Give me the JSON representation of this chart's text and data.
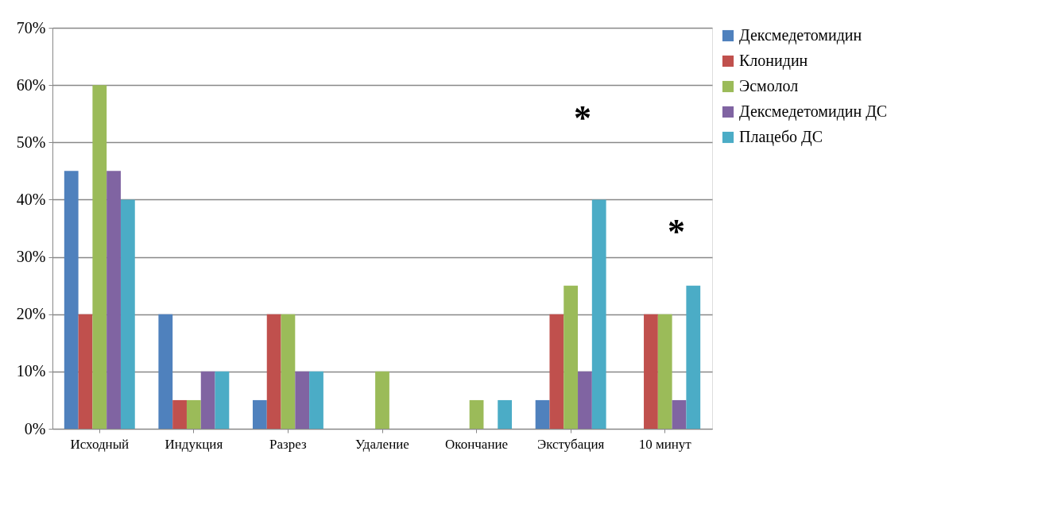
{
  "chart_data": {
    "type": "bar",
    "categories": [
      "Исходный",
      "Индукция",
      "Разрез",
      "Удаление",
      "Окончание",
      "Экстубация",
      "10 минут"
    ],
    "series": [
      {
        "name": "Дексмедетомидин",
        "color": "#4f81bd",
        "values": [
          45,
          20,
          5,
          0,
          0,
          5,
          0
        ]
      },
      {
        "name": "Клонидин",
        "color": "#c0504d",
        "values": [
          20,
          5,
          20,
          0,
          0,
          20,
          20
        ]
      },
      {
        "name": "Эсмолол",
        "color": "#9bbb59",
        "values": [
          60,
          5,
          20,
          10,
          5,
          25,
          20
        ]
      },
      {
        "name": "Дексмедетомидин ДС",
        "color": "#8064a2",
        "values": [
          45,
          10,
          10,
          0,
          0,
          10,
          5
        ]
      },
      {
        "name": "Плацебо ДС",
        "color": "#4bacc6",
        "values": [
          40,
          10,
          10,
          0,
          5,
          40,
          25
        ]
      }
    ],
    "ylim": [
      0,
      70
    ],
    "yticks": [
      {
        "value": 0,
        "label": "0%"
      },
      {
        "value": 10,
        "label": "10%"
      },
      {
        "value": 20,
        "label": "20%"
      },
      {
        "value": 30,
        "label": "30%"
      },
      {
        "value": 40,
        "label": "40%"
      },
      {
        "value": 50,
        "label": "50%"
      },
      {
        "value": 60,
        "label": "60%"
      },
      {
        "value": 70,
        "label": "70%"
      }
    ],
    "annotations": [
      "*",
      "*"
    ],
    "grid": "y",
    "legend": "right"
  }
}
